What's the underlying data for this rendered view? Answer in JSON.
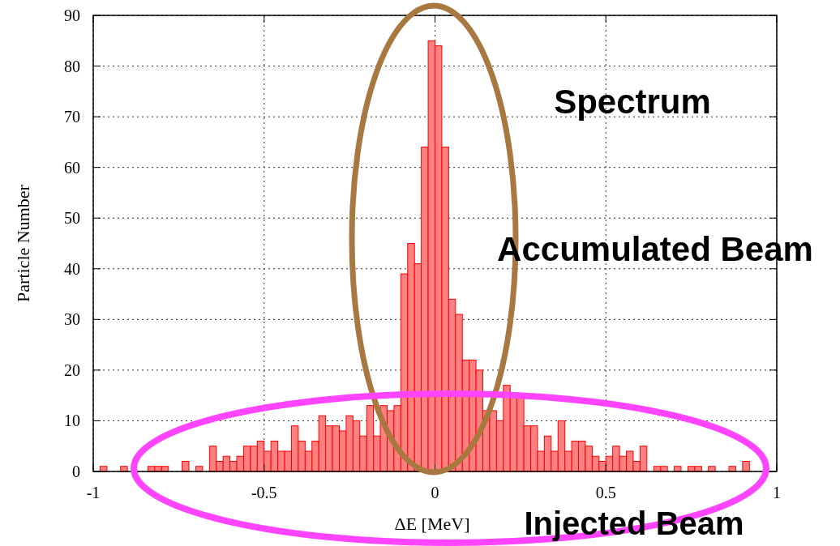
{
  "chart_data": {
    "type": "histogram",
    "xlabel": "ΔE [MeV]",
    "ylabel": "Particle Number",
    "annotations": [
      "Spectrum",
      "Accumulated Beam",
      "Injected Beam"
    ],
    "bins": [
      -1,
      -0.98,
      -0.96,
      -0.94,
      -0.92,
      -0.9,
      -0.88,
      -0.86,
      -0.84,
      -0.82,
      -0.8,
      -0.78,
      -0.76,
      -0.74,
      -0.72,
      -0.7,
      -0.68,
      -0.66,
      -0.64,
      -0.62,
      -0.6,
      -0.58,
      -0.56,
      -0.54,
      -0.52,
      -0.5,
      -0.48,
      -0.46,
      -0.44,
      -0.42,
      -0.4,
      -0.38,
      -0.36,
      -0.34,
      -0.32,
      -0.3,
      -0.28,
      -0.26,
      -0.24,
      -0.22,
      -0.2,
      -0.18,
      -0.16,
      -0.14,
      -0.12,
      -0.1,
      -0.08,
      -0.06,
      -0.04,
      -0.02,
      0,
      0.02,
      0.04,
      0.06,
      0.08,
      0.1,
      0.12,
      0.14,
      0.16,
      0.18,
      0.2,
      0.22,
      0.24,
      0.26,
      0.28,
      0.3,
      0.32,
      0.34,
      0.36,
      0.38,
      0.4,
      0.42,
      0.44,
      0.46,
      0.48,
      0.5,
      0.52,
      0.54,
      0.56,
      0.58,
      0.6,
      0.62,
      0.64,
      0.66,
      0.68,
      0.7,
      0.72,
      0.74,
      0.76,
      0.78,
      0.8,
      0.82,
      0.84,
      0.86,
      0.88,
      0.9,
      0.92,
      0.94,
      0.96,
      0.98,
      1
    ],
    "values": [
      0,
      1,
      0,
      0,
      1,
      0,
      0,
      0,
      1,
      1,
      1,
      0,
      0,
      2,
      0,
      1,
      0,
      5,
      2,
      3,
      2,
      3,
      5,
      5,
      6,
      4,
      6,
      4,
      4,
      9,
      6,
      4,
      6,
      11,
      9,
      9,
      8,
      11,
      10,
      7,
      13,
      7,
      13,
      12,
      13,
      39,
      45,
      41,
      64,
      85,
      84,
      64,
      34,
      31,
      22,
      22,
      20,
      12,
      12,
      10,
      17,
      15,
      15,
      9,
      9,
      4,
      7,
      4,
      10,
      4,
      6,
      6,
      5,
      3,
      2,
      3,
      5,
      3,
      4,
      2,
      5,
      0,
      1,
      1,
      0,
      1,
      0,
      1,
      1,
      0,
      1,
      0,
      0,
      1,
      0,
      2,
      0,
      0,
      0,
      0
    ],
    "color": "#ff8080",
    "xlim": [
      -1,
      1
    ],
    "xticks": [
      -1,
      -0.5,
      0,
      0.5,
      1
    ],
    "ylim": [
      0,
      90
    ],
    "yticks": [
      0,
      10,
      20,
      30,
      40,
      50,
      60,
      70,
      80,
      90
    ],
    "grid": true
  }
}
